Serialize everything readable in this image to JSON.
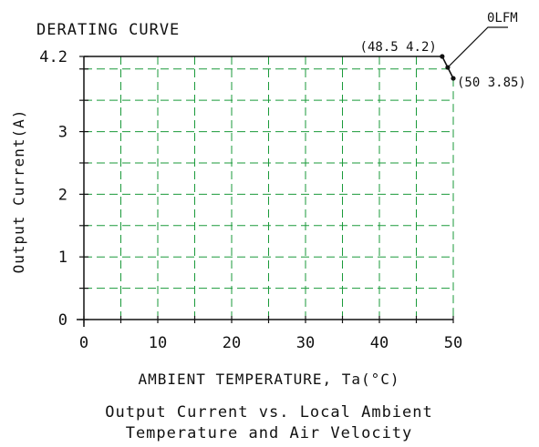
{
  "chart_data": {
    "type": "line",
    "title": "DERATING CURVE",
    "xlabel": "AMBIENT TEMPERATURE, Ta(°C)",
    "ylabel": "Output Current(A)",
    "xlim": [
      0,
      50
    ],
    "ylim": [
      0,
      4.2
    ],
    "x_ticks": [
      "0",
      "10",
      "20",
      "30",
      "40",
      "50"
    ],
    "y_ticks": [
      "0",
      "1",
      "2",
      "3",
      "4.2"
    ],
    "grid": true,
    "grid_color": "#1a9a3a",
    "series": [
      {
        "name": "0LFM",
        "x": [
          0,
          48.5,
          50
        ],
        "y": [
          4.2,
          4.2,
          3.85
        ]
      }
    ],
    "annotations": [
      {
        "text": "(48.5  4.2)",
        "x": 48.5,
        "y": 4.2
      },
      {
        "text": "(50  3.85)",
        "x": 50,
        "y": 3.85
      }
    ],
    "caption": [
      "Output Current vs. Local Ambient",
      "Temperature and Air Velocity"
    ]
  }
}
